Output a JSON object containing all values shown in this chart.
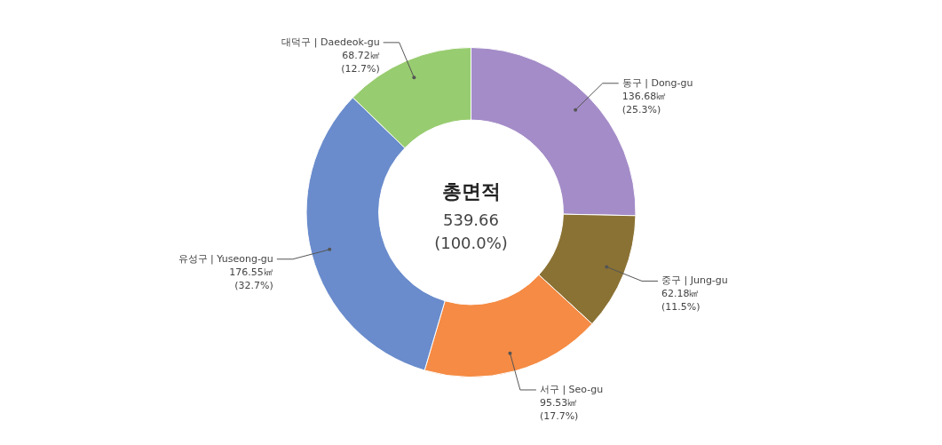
{
  "chart_data": {
    "type": "donut",
    "title": "총면적",
    "annotations": [
      "539.66",
      "(100.0%)"
    ],
    "categories": [
      "동구 | Dong-gu",
      "중구 | Jung-gu",
      "서구 | Seo-gu",
      "유성구 | Yuseong-gu",
      "대덕구 | Daedeok-gu"
    ],
    "values": [
      136.68,
      62.18,
      95.53,
      176.55,
      68.72
    ],
    "colors": [
      "#a48cc8",
      "#8a7234",
      "#f58b44",
      "#6a8ccc",
      "#98cc70"
    ],
    "value_labels": [
      "136.68㎢\n(25.3%)",
      "62.18㎢\n(11.5%)",
      "95.53㎢\n(17.7%)",
      "176.55㎢\n(32.7%)",
      "68.72㎢\n(12.7%)"
    ],
    "legend": false
  }
}
